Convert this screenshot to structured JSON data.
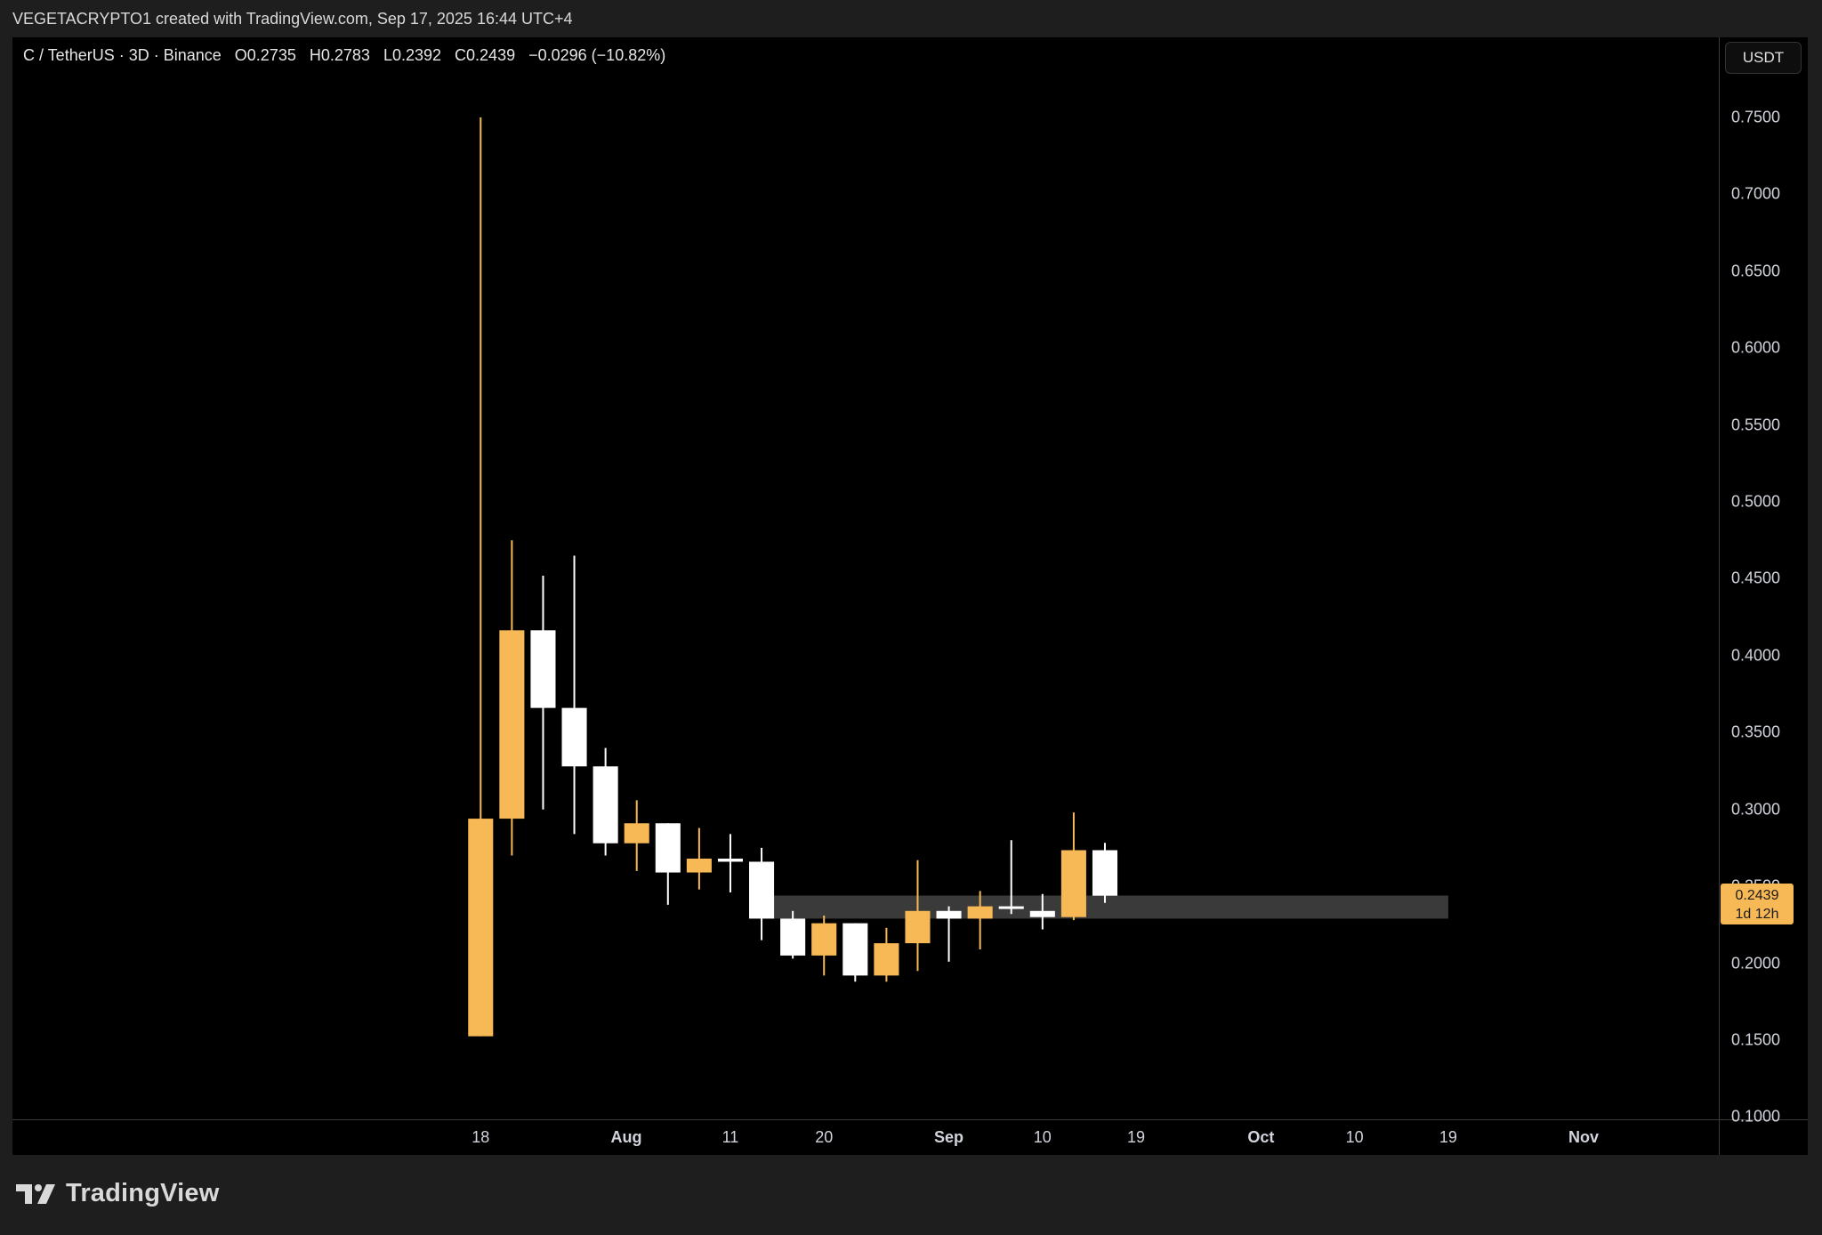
{
  "caption": "VEGETACRYPTO1 created with TradingView.com, Sep 17, 2025 16:44 UTC+4",
  "legend": {
    "symbol": "C / TetherUS · 3D · Binance",
    "open": "O0.2735",
    "high": "H0.2783",
    "low": "L0.2392",
    "close": "C0.2439",
    "change": "−0.0296 (−10.82%)"
  },
  "currency_button": "USDT",
  "price_tag": {
    "price": "0.2439",
    "countdown": "1d 12h"
  },
  "footer": {
    "brand": "TradingView"
  },
  "colors": {
    "up": "#f7b955",
    "down": "#ffffff",
    "zone": "#3a3a3a",
    "background": "#000000"
  },
  "chart_data": {
    "type": "candlestick",
    "title": "",
    "y_ticks": [
      "0.7500",
      "0.7000",
      "0.6500",
      "0.6000",
      "0.5500",
      "0.5000",
      "0.4500",
      "0.4000",
      "0.3500",
      "0.3000",
      "0.2500",
      "0.2000",
      "0.1500",
      "0.1000"
    ],
    "ylim": [
      0.0985,
      0.802
    ],
    "x_ticks": [
      {
        "label": "18",
        "date": "2025-07-18",
        "bold": false
      },
      {
        "label": "Aug",
        "date": "2025-08-01",
        "bold": true
      },
      {
        "label": "11",
        "date": "2025-08-11",
        "bold": false
      },
      {
        "label": "20",
        "date": "2025-08-20",
        "bold": false
      },
      {
        "label": "Sep",
        "date": "2025-09-01",
        "bold": true
      },
      {
        "label": "10",
        "date": "2025-09-10",
        "bold": false
      },
      {
        "label": "19",
        "date": "2025-09-19",
        "bold": false
      },
      {
        "label": "Oct",
        "date": "2025-10-01",
        "bold": true
      },
      {
        "label": "10",
        "date": "2025-10-10",
        "bold": false
      },
      {
        "label": "19",
        "date": "2025-10-19",
        "bold": false
      },
      {
        "label": "Nov",
        "date": "2025-11-01",
        "bold": true
      }
    ],
    "xlim": [
      "2025-06-03",
      "2025-11-14"
    ],
    "candles": [
      {
        "date": "2025-07-18",
        "open": 0.1525,
        "high": 0.75,
        "low": 0.1525,
        "close": 0.294
      },
      {
        "date": "2025-07-21",
        "open": 0.294,
        "high": 0.475,
        "low": 0.27,
        "close": 0.4165
      },
      {
        "date": "2025-07-24",
        "open": 0.4165,
        "high": 0.452,
        "low": 0.3,
        "close": 0.366
      },
      {
        "date": "2025-07-27",
        "open": 0.366,
        "high": 0.465,
        "low": 0.284,
        "close": 0.328
      },
      {
        "date": "2025-07-30",
        "open": 0.328,
        "high": 0.34,
        "low": 0.27,
        "close": 0.278
      },
      {
        "date": "2025-08-02",
        "open": 0.278,
        "high": 0.306,
        "low": 0.26,
        "close": 0.291
      },
      {
        "date": "2025-08-05",
        "open": 0.291,
        "high": 0.291,
        "low": 0.238,
        "close": 0.259
      },
      {
        "date": "2025-08-08",
        "open": 0.259,
        "high": 0.288,
        "low": 0.248,
        "close": 0.268
      },
      {
        "date": "2025-08-11",
        "open": 0.268,
        "high": 0.284,
        "low": 0.246,
        "close": 0.266
      },
      {
        "date": "2025-08-14",
        "open": 0.266,
        "high": 0.275,
        "low": 0.215,
        "close": 0.229
      },
      {
        "date": "2025-08-17",
        "open": 0.229,
        "high": 0.234,
        "low": 0.203,
        "close": 0.205
      },
      {
        "date": "2025-08-20",
        "open": 0.205,
        "high": 0.231,
        "low": 0.192,
        "close": 0.226
      },
      {
        "date": "2025-08-23",
        "open": 0.226,
        "high": 0.226,
        "low": 0.188,
        "close": 0.192
      },
      {
        "date": "2025-08-26",
        "open": 0.192,
        "high": 0.223,
        "low": 0.188,
        "close": 0.213
      },
      {
        "date": "2025-08-29",
        "open": 0.213,
        "high": 0.267,
        "low": 0.195,
        "close": 0.234
      },
      {
        "date": "2025-09-01",
        "open": 0.234,
        "high": 0.237,
        "low": 0.201,
        "close": 0.229
      },
      {
        "date": "2025-09-04",
        "open": 0.229,
        "high": 0.247,
        "low": 0.209,
        "close": 0.237
      },
      {
        "date": "2025-09-07",
        "open": 0.237,
        "high": 0.28,
        "low": 0.232,
        "close": 0.236
      },
      {
        "date": "2025-09-10",
        "open": 0.234,
        "high": 0.245,
        "low": 0.222,
        "close": 0.23
      },
      {
        "date": "2025-09-13",
        "open": 0.23,
        "high": 0.298,
        "low": 0.228,
        "close": 0.2735
      },
      {
        "date": "2025-09-16",
        "open": 0.2735,
        "high": 0.2783,
        "low": 0.2392,
        "close": 0.2439
      }
    ],
    "zone": {
      "from": "2025-08-15",
      "to": "2025-10-19",
      "low": 0.229,
      "high": 0.244
    },
    "last_price": 0.2439
  }
}
